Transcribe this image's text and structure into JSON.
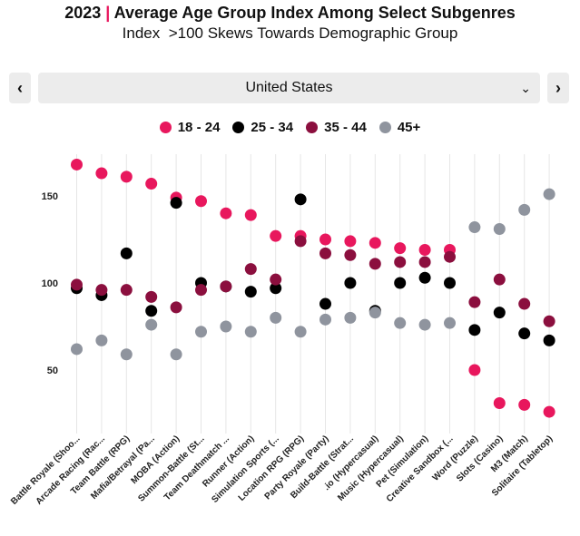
{
  "header": {
    "year": "2023",
    "title": "Average Age Group Index Among Select Subgenres",
    "subtitle": "Index  >100 Skews Towards Demographic Group"
  },
  "selector": {
    "value": "United States",
    "prev_icon": "chevron-left-icon",
    "next_icon": "chevron-right-icon",
    "dropdown_icon": "chevron-down-icon"
  },
  "chart_data": {
    "type": "scatter",
    "title": "Average Age Group Index Among Select Subgenres",
    "xlabel": "",
    "ylabel": "",
    "ylim": [
      20,
      175
    ],
    "yticks": [
      50,
      100,
      150
    ],
    "grid": {
      "vertical": true,
      "horizontal": false
    },
    "legend_position": "top-center",
    "categories": [
      "Battle Royale (Shoo...",
      "Arcade Racing (Rac...",
      "Team Battle (RPG)",
      "Mafia/Betrayal (Pa...",
      "MOBA (Action)",
      "Summon-Battle (St...",
      "Team Deathmatch ...",
      "Runner (Action)",
      "Simulation Sports (...",
      "Location RPG (RPG)",
      "Party Royale (Party)",
      "Build-Battle (Strat...",
      ".io (Hypercasual)",
      "Music (Hypercasual)",
      "Pet (Simulation)",
      "Creative Sandbox (...",
      "Word (Puzzle)",
      "Slots (Casino)",
      "M3 (Match)",
      "Solitaire (Tabletop)"
    ],
    "series": [
      {
        "name": "18 - 24",
        "color": "#e8175d",
        "values": [
          168,
          163,
          161,
          157,
          149,
          147,
          140,
          139,
          127,
          127,
          125,
          124,
          123,
          120,
          119,
          119,
          50,
          31,
          30,
          26
        ]
      },
      {
        "name": "25 - 34",
        "color": "#000000",
        "values": [
          97,
          93,
          117,
          84,
          146,
          100,
          98,
          95,
          97,
          148,
          88,
          100,
          84,
          100,
          103,
          100,
          73,
          83,
          71,
          67
        ]
      },
      {
        "name": "35 - 44",
        "color": "#8b0f3e",
        "values": [
          99,
          96,
          96,
          92,
          86,
          96,
          98,
          108,
          102,
          124,
          117,
          116,
          111,
          112,
          112,
          115,
          89,
          102,
          88,
          78
        ]
      },
      {
        "name": "45+",
        "color": "#8f949e",
        "values": [
          62,
          67,
          59,
          76,
          59,
          72,
          75,
          72,
          80,
          72,
          79,
          80,
          83,
          77,
          76,
          77,
          132,
          131,
          142,
          151
        ]
      }
    ]
  }
}
